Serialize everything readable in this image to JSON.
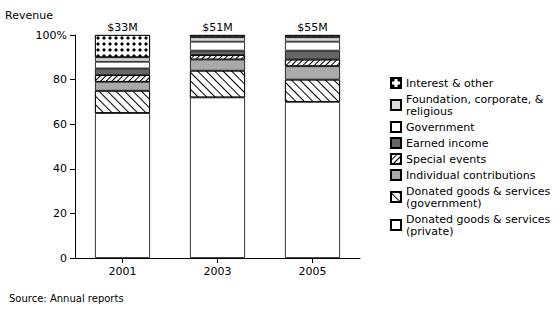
{
  "chart_data": {
    "type": "bar",
    "stacked": true,
    "grid": false,
    "legend": "right",
    "y_label": "Revenue",
    "caption": "Source: Annual reports",
    "categories": [
      "2001",
      "2003",
      "2005"
    ],
    "annotations": [
      "$33M",
      "$51M",
      "$55M"
    ],
    "ylim": [
      0,
      100
    ],
    "yticks": [
      0,
      20,
      40,
      60,
      80,
      {
        "value": 100,
        "label": "100%"
      }
    ],
    "series": [
      {
        "name": "Donated goods & services (private)",
        "color": "#ffffff",
        "values": [
          65,
          72,
          70
        ]
      },
      {
        "name": "Donated goods & services (government)",
        "color": "#ffffff",
        "values": [
          10,
          12,
          10
        ]
      },
      {
        "name": "Individual contributions",
        "color": "#aaaaaa",
        "values": [
          4,
          5,
          6
        ]
      },
      {
        "name": "Special events",
        "color": "#ffffff",
        "values": [
          3,
          2,
          3
        ]
      },
      {
        "name": "Earned income",
        "color": "#666666",
        "values": [
          3,
          2,
          4
        ]
      },
      {
        "name": "Government",
        "color": "#ffffff",
        "values": [
          3,
          4,
          4
        ]
      },
      {
        "name": "Foundation, corporate, & religious",
        "color": "#d9d9d9",
        "values": [
          2,
          2,
          2
        ]
      },
      {
        "name": "Interest & other",
        "color": "#ffffff",
        "values": [
          10,
          1,
          1
        ]
      }
    ]
  }
}
